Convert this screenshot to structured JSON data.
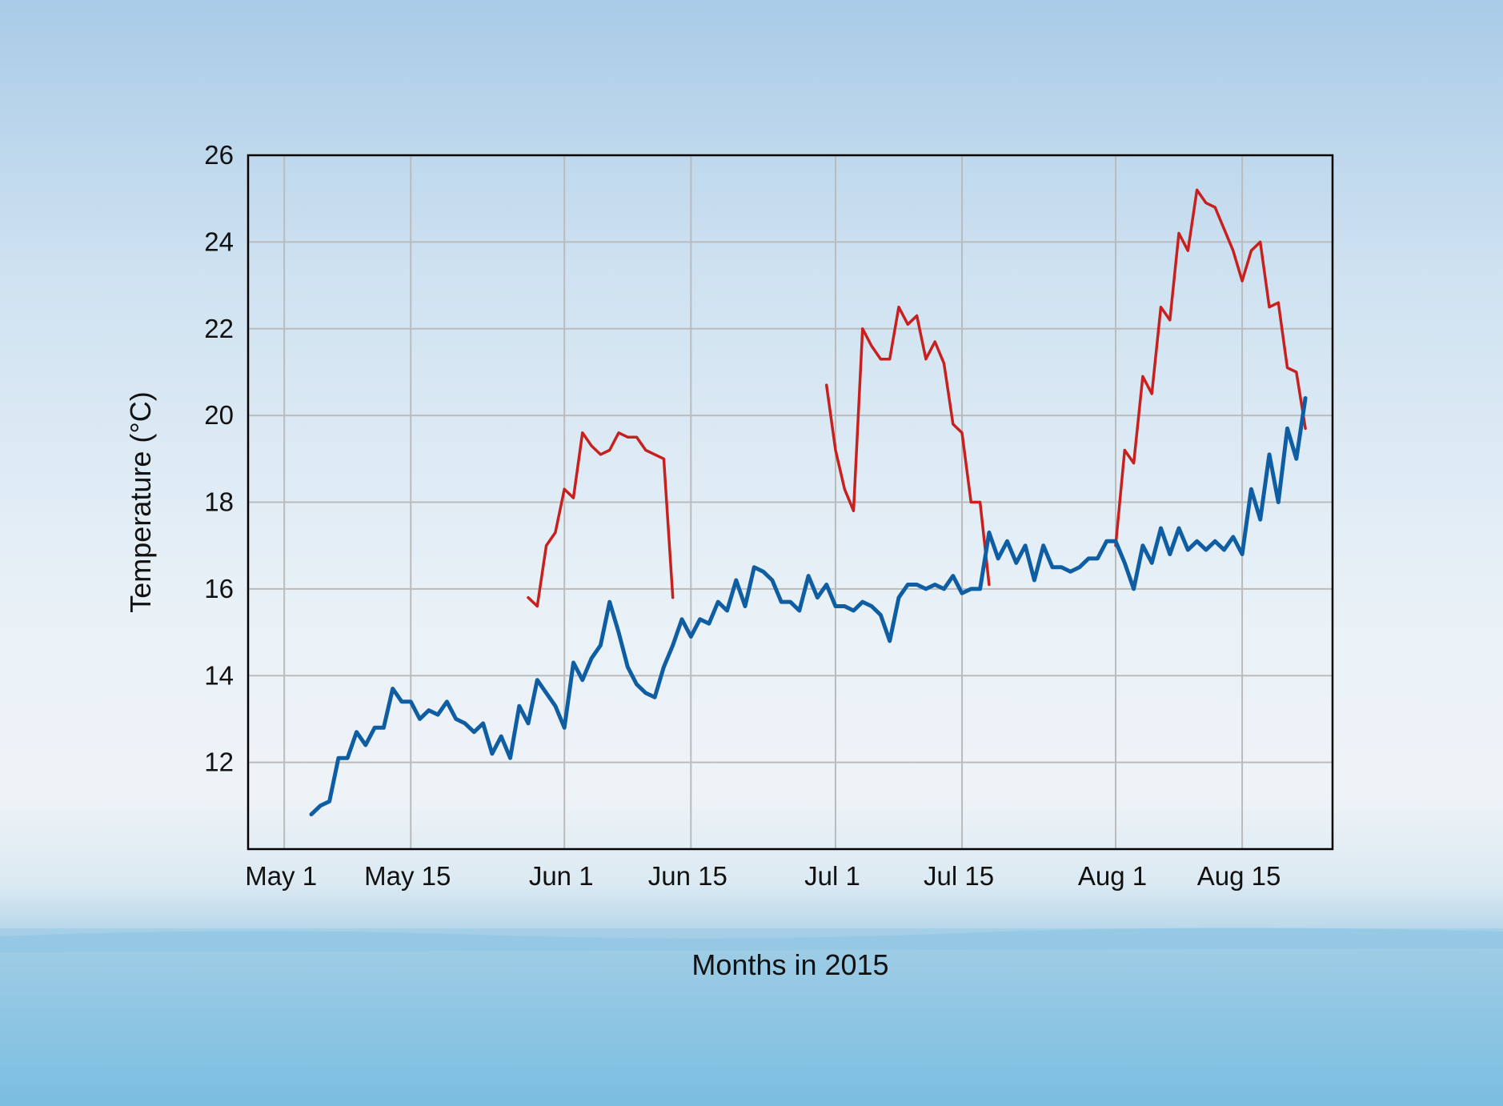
{
  "chart_data": {
    "type": "line",
    "xlabel": "Months in 2015",
    "ylabel": "Temperature (°C)",
    "x_tick_labels": [
      "May 1",
      "May 15",
      "Jun 1",
      "Jun 15",
      "Jul 1",
      "Jul 15",
      "Aug 1",
      "Aug 15"
    ],
    "x_tick_dates": [
      "2015-05-01",
      "2015-05-15",
      "2015-06-01",
      "2015-06-15",
      "2015-07-01",
      "2015-07-15",
      "2015-08-01",
      "2015-08-15"
    ],
    "xlim": [
      "2015-04-27",
      "2015-08-25"
    ],
    "y_ticks": [
      12,
      14,
      16,
      18,
      20,
      22,
      24,
      26
    ],
    "ylim": [
      10,
      26
    ],
    "grid": true,
    "legend": "none",
    "colors": {
      "series_red": "#c8201e",
      "series_blue": "#0f5ea3",
      "grid": "#bbbbbb",
      "axis": "#000000"
    },
    "series": [
      {
        "color": "#c8201e",
        "points": [
          [
            "2015-05-28",
            15.8
          ],
          [
            "2015-05-29",
            15.6
          ],
          [
            "2015-05-30",
            17.0
          ],
          [
            "2015-05-31",
            17.3
          ],
          [
            "2015-06-01",
            18.3
          ],
          [
            "2015-06-02",
            18.1
          ],
          [
            "2015-06-03",
            19.6
          ],
          [
            "2015-06-04",
            19.3
          ],
          [
            "2015-06-05",
            19.1
          ],
          [
            "2015-06-06",
            19.2
          ],
          [
            "2015-06-07",
            19.6
          ],
          [
            "2015-06-08",
            19.5
          ],
          [
            "2015-06-09",
            19.5
          ],
          [
            "2015-06-10",
            19.2
          ],
          [
            "2015-06-11",
            19.1
          ],
          [
            "2015-06-12",
            19.0
          ],
          [
            "2015-06-13",
            15.8
          ],
          [
            "2015-06-30",
            20.7
          ],
          [
            "2015-07-01",
            19.2
          ],
          [
            "2015-07-02",
            18.3
          ],
          [
            "2015-07-03",
            17.8
          ],
          [
            "2015-07-04",
            22.0
          ],
          [
            "2015-07-05",
            21.6
          ],
          [
            "2015-07-06",
            21.3
          ],
          [
            "2015-07-07",
            21.3
          ],
          [
            "2015-07-08",
            22.5
          ],
          [
            "2015-07-09",
            22.1
          ],
          [
            "2015-07-10",
            22.3
          ],
          [
            "2015-07-11",
            21.3
          ],
          [
            "2015-07-12",
            21.7
          ],
          [
            "2015-07-13",
            21.2
          ],
          [
            "2015-07-14",
            19.8
          ],
          [
            "2015-07-15",
            19.6
          ],
          [
            "2015-07-16",
            18.0
          ],
          [
            "2015-07-17",
            18.0
          ],
          [
            "2015-07-18",
            16.1
          ],
          [
            "2015-08-01",
            17.0
          ],
          [
            "2015-08-02",
            19.2
          ],
          [
            "2015-08-03",
            18.9
          ],
          [
            "2015-08-04",
            20.9
          ],
          [
            "2015-08-05",
            20.5
          ],
          [
            "2015-08-06",
            22.5
          ],
          [
            "2015-08-07",
            22.2
          ],
          [
            "2015-08-08",
            24.2
          ],
          [
            "2015-08-09",
            23.8
          ],
          [
            "2015-08-10",
            25.2
          ],
          [
            "2015-08-11",
            24.9
          ],
          [
            "2015-08-12",
            24.8
          ],
          [
            "2015-08-13",
            24.3
          ],
          [
            "2015-08-14",
            23.8
          ],
          [
            "2015-08-15",
            23.1
          ],
          [
            "2015-08-16",
            23.8
          ],
          [
            "2015-08-17",
            24.0
          ],
          [
            "2015-08-18",
            22.5
          ],
          [
            "2015-08-19",
            22.6
          ],
          [
            "2015-08-20",
            21.1
          ],
          [
            "2015-08-21",
            21.0
          ],
          [
            "2015-08-22",
            19.7
          ]
        ]
      },
      {
        "color": "#0f5ea3",
        "points": [
          [
            "2015-05-04",
            10.8
          ],
          [
            "2015-05-05",
            11.0
          ],
          [
            "2015-05-06",
            11.1
          ],
          [
            "2015-05-07",
            12.1
          ],
          [
            "2015-05-08",
            12.1
          ],
          [
            "2015-05-09",
            12.7
          ],
          [
            "2015-05-10",
            12.4
          ],
          [
            "2015-05-11",
            12.8
          ],
          [
            "2015-05-12",
            12.8
          ],
          [
            "2015-05-13",
            13.7
          ],
          [
            "2015-05-14",
            13.4
          ],
          [
            "2015-05-15",
            13.4
          ],
          [
            "2015-05-16",
            13.0
          ],
          [
            "2015-05-17",
            13.2
          ],
          [
            "2015-05-18",
            13.1
          ],
          [
            "2015-05-19",
            13.4
          ],
          [
            "2015-05-20",
            13.0
          ],
          [
            "2015-05-21",
            12.9
          ],
          [
            "2015-05-22",
            12.7
          ],
          [
            "2015-05-23",
            12.9
          ],
          [
            "2015-05-24",
            12.2
          ],
          [
            "2015-05-25",
            12.6
          ],
          [
            "2015-05-26",
            12.1
          ],
          [
            "2015-05-27",
            13.3
          ],
          [
            "2015-05-28",
            12.9
          ],
          [
            "2015-05-29",
            13.9
          ],
          [
            "2015-05-30",
            13.6
          ],
          [
            "2015-05-31",
            13.3
          ],
          [
            "2015-06-01",
            12.8
          ],
          [
            "2015-06-02",
            14.3
          ],
          [
            "2015-06-03",
            13.9
          ],
          [
            "2015-06-04",
            14.4
          ],
          [
            "2015-06-05",
            14.7
          ],
          [
            "2015-06-06",
            15.7
          ],
          [
            "2015-06-07",
            15.0
          ],
          [
            "2015-06-08",
            14.2
          ],
          [
            "2015-06-09",
            13.8
          ],
          [
            "2015-06-10",
            13.6
          ],
          [
            "2015-06-11",
            13.5
          ],
          [
            "2015-06-12",
            14.2
          ],
          [
            "2015-06-13",
            14.7
          ],
          [
            "2015-06-14",
            15.3
          ],
          [
            "2015-06-15",
            14.9
          ],
          [
            "2015-06-16",
            15.3
          ],
          [
            "2015-06-17",
            15.2
          ],
          [
            "2015-06-18",
            15.7
          ],
          [
            "2015-06-19",
            15.5
          ],
          [
            "2015-06-20",
            16.2
          ],
          [
            "2015-06-21",
            15.6
          ],
          [
            "2015-06-22",
            16.5
          ],
          [
            "2015-06-23",
            16.4
          ],
          [
            "2015-06-24",
            16.2
          ],
          [
            "2015-06-25",
            15.7
          ],
          [
            "2015-06-26",
            15.7
          ],
          [
            "2015-06-27",
            15.5
          ],
          [
            "2015-06-28",
            16.3
          ],
          [
            "2015-06-29",
            15.8
          ],
          [
            "2015-06-30",
            16.1
          ],
          [
            "2015-07-01",
            15.6
          ],
          [
            "2015-07-02",
            15.6
          ],
          [
            "2015-07-03",
            15.5
          ],
          [
            "2015-07-04",
            15.7
          ],
          [
            "2015-07-05",
            15.6
          ],
          [
            "2015-07-06",
            15.4
          ],
          [
            "2015-07-07",
            14.8
          ],
          [
            "2015-07-08",
            15.8
          ],
          [
            "2015-07-09",
            16.1
          ],
          [
            "2015-07-10",
            16.1
          ],
          [
            "2015-07-11",
            16.0
          ],
          [
            "2015-07-12",
            16.1
          ],
          [
            "2015-07-13",
            16.0
          ],
          [
            "2015-07-14",
            16.3
          ],
          [
            "2015-07-15",
            15.9
          ],
          [
            "2015-07-16",
            16.0
          ],
          [
            "2015-07-17",
            16.0
          ],
          [
            "2015-07-18",
            17.3
          ],
          [
            "2015-07-19",
            16.7
          ],
          [
            "2015-07-20",
            17.1
          ],
          [
            "2015-07-21",
            16.6
          ],
          [
            "2015-07-22",
            17.0
          ],
          [
            "2015-07-23",
            16.2
          ],
          [
            "2015-07-24",
            17.0
          ],
          [
            "2015-07-25",
            16.5
          ],
          [
            "2015-07-26",
            16.5
          ],
          [
            "2015-07-27",
            16.4
          ],
          [
            "2015-07-28",
            16.5
          ],
          [
            "2015-07-29",
            16.7
          ],
          [
            "2015-07-30",
            16.7
          ],
          [
            "2015-07-31",
            17.1
          ],
          [
            "2015-08-01",
            17.1
          ],
          [
            "2015-08-02",
            16.6
          ],
          [
            "2015-08-03",
            16.0
          ],
          [
            "2015-08-04",
            17.0
          ],
          [
            "2015-08-05",
            16.6
          ],
          [
            "2015-08-06",
            17.4
          ],
          [
            "2015-08-07",
            16.8
          ],
          [
            "2015-08-08",
            17.4
          ],
          [
            "2015-08-09",
            16.9
          ],
          [
            "2015-08-10",
            17.1
          ],
          [
            "2015-08-11",
            16.9
          ],
          [
            "2015-08-12",
            17.1
          ],
          [
            "2015-08-13",
            16.9
          ],
          [
            "2015-08-14",
            17.2
          ],
          [
            "2015-08-15",
            16.8
          ],
          [
            "2015-08-16",
            18.3
          ],
          [
            "2015-08-17",
            17.6
          ],
          [
            "2015-08-18",
            19.1
          ],
          [
            "2015-08-19",
            18.0
          ],
          [
            "2015-08-20",
            19.7
          ],
          [
            "2015-08-21",
            19.0
          ],
          [
            "2015-08-22",
            20.4
          ]
        ]
      }
    ]
  }
}
